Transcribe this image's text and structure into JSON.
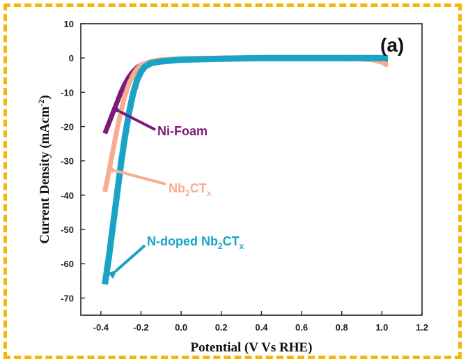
{
  "chart_data": {
    "type": "line",
    "panel_label": "(a)",
    "xlabel": "Potential (V Vs RHE)",
    "ylabel": "Current Density (mAcm",
    "ylabel_sup": "-2",
    "ylabel_close": ")",
    "xlim": [
      -0.5,
      1.2
    ],
    "ylim": [
      -75,
      10
    ],
    "xticks": [
      -0.4,
      -0.2,
      0.0,
      0.2,
      0.4,
      0.6,
      0.8,
      1.0,
      1.2
    ],
    "xtick_labels": [
      "-0.4",
      "-0.2",
      "0.0",
      "0.2",
      "0.4",
      "0.6",
      "0.8",
      "1.0",
      "1.2"
    ],
    "yticks": [
      10,
      0,
      -10,
      -20,
      -30,
      -40,
      -50,
      -60,
      -70
    ],
    "ytick_labels": [
      "10",
      "0",
      "-10",
      "-20",
      "-30",
      "-40",
      "-50",
      "-60",
      "-70"
    ],
    "series": [
      {
        "key": "nifoam",
        "color": "#7b1a7a",
        "x": [
          -0.38,
          -0.36,
          -0.34,
          -0.32,
          -0.3,
          -0.28,
          -0.26,
          -0.24,
          -0.22,
          -0.2,
          -0.15,
          -0.1,
          0.0,
          0.2,
          0.4,
          0.6,
          0.8,
          1.0,
          1.03
        ],
        "y": [
          -22,
          -19,
          -16,
          -13,
          -10,
          -7.5,
          -5.5,
          -4,
          -2.8,
          -2,
          -1.2,
          -0.8,
          -0.5,
          -0.3,
          -0.2,
          -0.2,
          -0.2,
          -0.3,
          -0.4
        ]
      },
      {
        "key": "nb2ctx",
        "color": "#f7ad8f",
        "x": [
          -0.38,
          -0.36,
          -0.34,
          -0.32,
          -0.3,
          -0.28,
          -0.26,
          -0.24,
          -0.22,
          -0.2,
          -0.15,
          -0.1,
          0.0,
          0.2,
          0.4,
          0.6,
          0.8,
          0.95,
          1.0,
          1.03
        ],
        "y": [
          -39,
          -33,
          -27,
          -21,
          -15.5,
          -11,
          -7.5,
          -5,
          -3.2,
          -2,
          -1,
          -0.5,
          -0.2,
          0,
          0.1,
          0.1,
          0,
          -0.5,
          -1.2,
          -2.2
        ]
      },
      {
        "key": "ndoped",
        "color": "#1aa3c6",
        "x": [
          -0.38,
          -0.36,
          -0.34,
          -0.32,
          -0.3,
          -0.28,
          -0.26,
          -0.24,
          -0.22,
          -0.2,
          -0.18,
          -0.15,
          -0.1,
          0.0,
          0.2,
          0.4,
          0.6,
          0.8,
          1.0,
          1.03
        ],
        "y": [
          -66,
          -58,
          -49,
          -40,
          -31,
          -23,
          -16,
          -10.5,
          -6.5,
          -4,
          -2.5,
          -1.5,
          -1,
          -0.5,
          -0.2,
          0,
          0,
          0,
          0,
          0
        ]
      }
    ],
    "annotations": [
      {
        "key": "nifoam",
        "label": "Ni-Foam",
        "color": "#7b1a7a",
        "sub": "",
        "tail": ""
      },
      {
        "key": "nb2ctx",
        "label": "Nb",
        "sub": "2",
        "tail": "CT",
        "sub2": "x",
        "color": "#f7ad8f"
      },
      {
        "key": "ndoped",
        "label": "N-doped Nb",
        "sub": "2",
        "tail": "CT",
        "sub2": "x",
        "color": "#1aa3c6"
      }
    ]
  }
}
